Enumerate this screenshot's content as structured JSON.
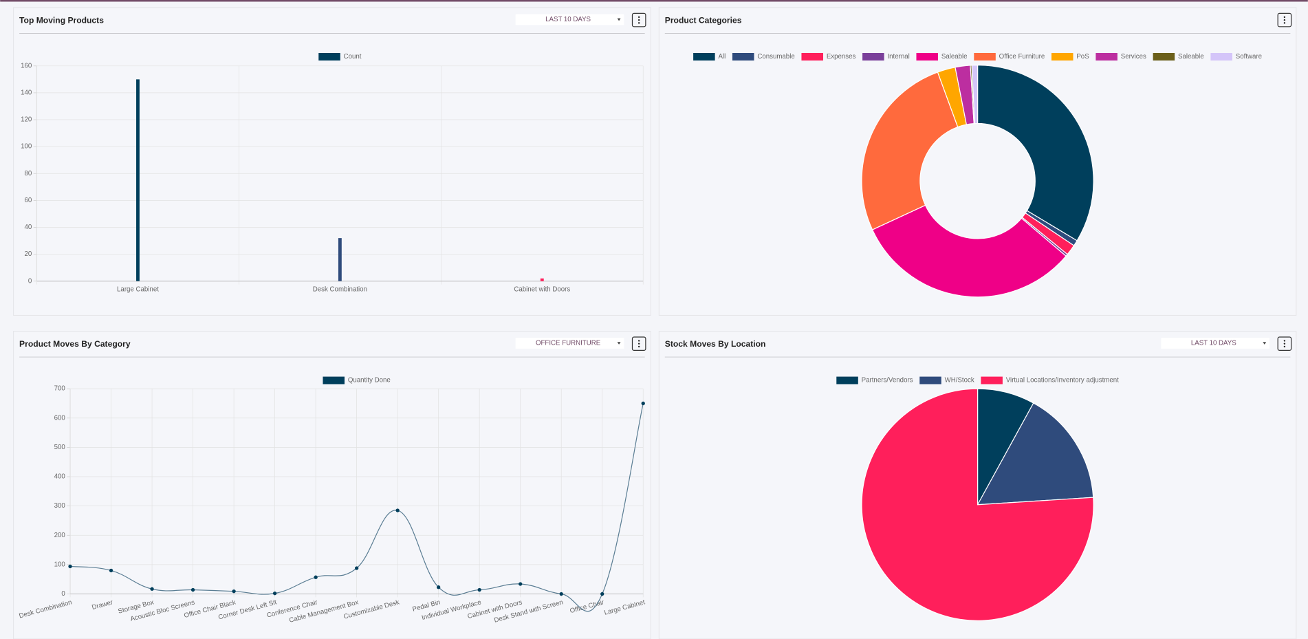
{
  "chart_data": [
    {
      "type": "bar",
      "title": "Top Moving Products",
      "filter": "LAST 10 DAYS",
      "categories": [
        "Large Cabinet",
        "Desk Combination",
        "Cabinet with Doors"
      ],
      "series": [
        {
          "name": "Count",
          "color": "#003f5c",
          "values": [
            150,
            32,
            2
          ]
        }
      ],
      "colors": [
        "#003f5c",
        "#2f4b7c",
        "#ff1f5b"
      ],
      "ylim": [
        0,
        160
      ],
      "yticks": [
        0,
        20,
        40,
        60,
        80,
        100,
        120,
        140,
        160
      ],
      "grid": true,
      "legend": "top"
    },
    {
      "type": "doughnut",
      "title": "Product Categories",
      "categories": [
        "All",
        "Consumable",
        "Expenses",
        "Internal",
        "Saleable",
        "Office Furniture",
        "PoS",
        "Services",
        "Saleable",
        "Software"
      ],
      "values": [
        33.6,
        0.8,
        1.5,
        0.3,
        31.9,
        26.3,
        2.5,
        2.1,
        0.2,
        0.8
      ],
      "colors": [
        "#003f5c",
        "#2f4b7c",
        "#ff1f5b",
        "#7a3f9a",
        "#ef0087",
        "#ff6a3d",
        "#ffa600",
        "#bc2ea0",
        "#6b5f1a",
        "#d4c5f9"
      ],
      "legend": "top"
    },
    {
      "type": "line",
      "title": "Product Moves By Category",
      "filter": "OFFICE FURNITURE",
      "categories": [
        "Desk Combination",
        "Drawer",
        "Storage Box",
        "Acoustic Bloc Screens",
        "Office Chair Black",
        "Corner Desk Left Sit",
        "Conference Chair",
        "Cable Management Box",
        "Customizable Desk",
        "Pedal Bin",
        "Individual Workplace",
        "Cabinet with Doors",
        "Desk Stand with Screen",
        "Office Chair",
        "Large Cabinet"
      ],
      "series": [
        {
          "name": "Quantity Done",
          "color": "#003f5c",
          "values": [
            94,
            80,
            17,
            14,
            9,
            2,
            57,
            88,
            285,
            23,
            14,
            34,
            0,
            0,
            650
          ]
        }
      ],
      "ylim": [
        0,
        700
      ],
      "yticks": [
        0,
        100,
        200,
        300,
        400,
        500,
        600,
        700
      ],
      "grid": true,
      "legend": "top"
    },
    {
      "type": "pie",
      "title": "Stock Moves By Location",
      "filter": "LAST 10 DAYS",
      "categories": [
        "Partners/Vendors",
        "WH/Stock",
        "Virtual Locations/Inventory adjustment"
      ],
      "values": [
        8,
        16,
        76
      ],
      "colors": [
        "#003f5c",
        "#2f4b7c",
        "#ff1f5b"
      ],
      "legend": "top"
    }
  ]
}
